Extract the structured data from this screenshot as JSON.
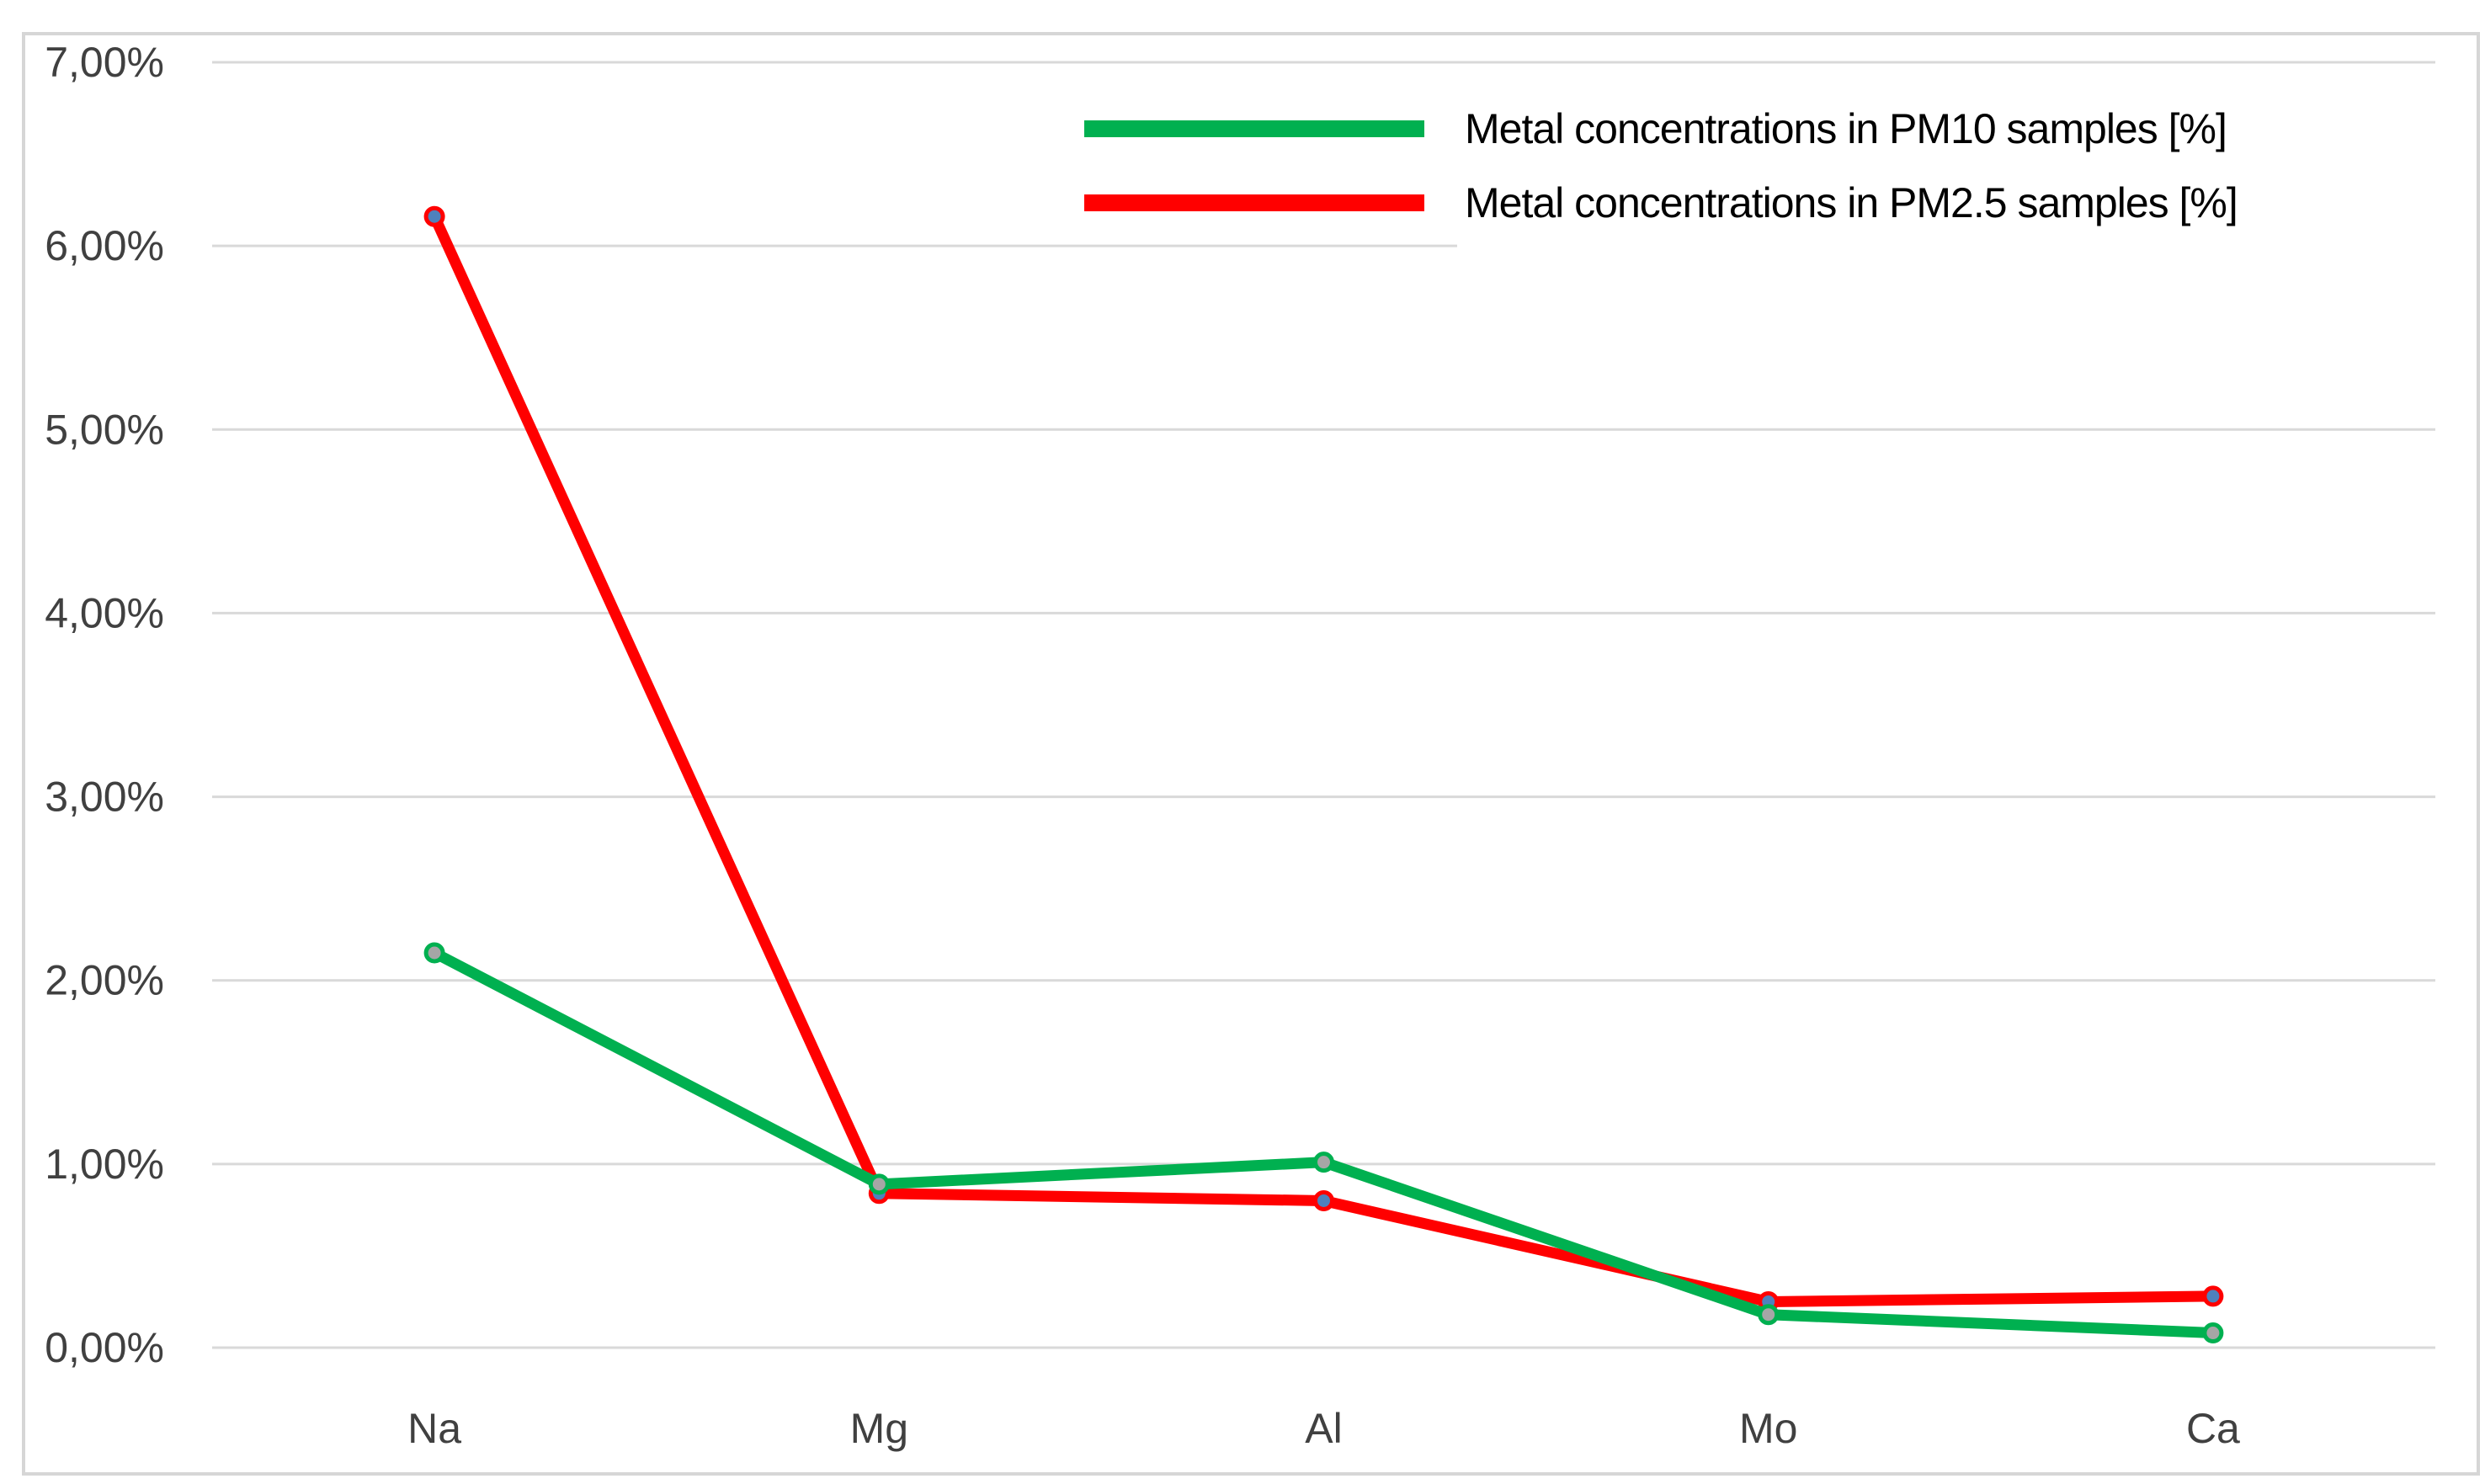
{
  "chart_data": {
    "type": "line",
    "title": "",
    "xlabel": "",
    "ylabel": "",
    "categories": [
      "Na",
      "Mg",
      "Al",
      "Mo",
      "Ca"
    ],
    "series": [
      {
        "name": "Metal concentrations in PM10 samples [%]",
        "color": "#00B050",
        "marker_fill": "#A6A6A6",
        "values": [
          2.15,
          0.89,
          1.01,
          0.18,
          0.08
        ]
      },
      {
        "name": "Metal concentrations in PM2.5 samples [%]",
        "color": "#FF0000",
        "marker_fill": "#4F81BD",
        "values": [
          6.16,
          0.84,
          0.8,
          0.25,
          0.28
        ]
      }
    ],
    "y_axis": {
      "min": 0,
      "max": 7,
      "step": 1,
      "tick_labels": [
        "0,00%",
        "1,00%",
        "2,00%",
        "3,00%",
        "4,00%",
        "5,00%",
        "6,00%",
        "7,00%"
      ],
      "format": "percent-comma-decimal"
    },
    "grid": true,
    "legend_position": "top-right"
  },
  "colors": {
    "gridline": "#D9D9D9",
    "chart_border": "#D6D6D6",
    "axis_text": "#404040",
    "background": "#FFFFFF"
  }
}
